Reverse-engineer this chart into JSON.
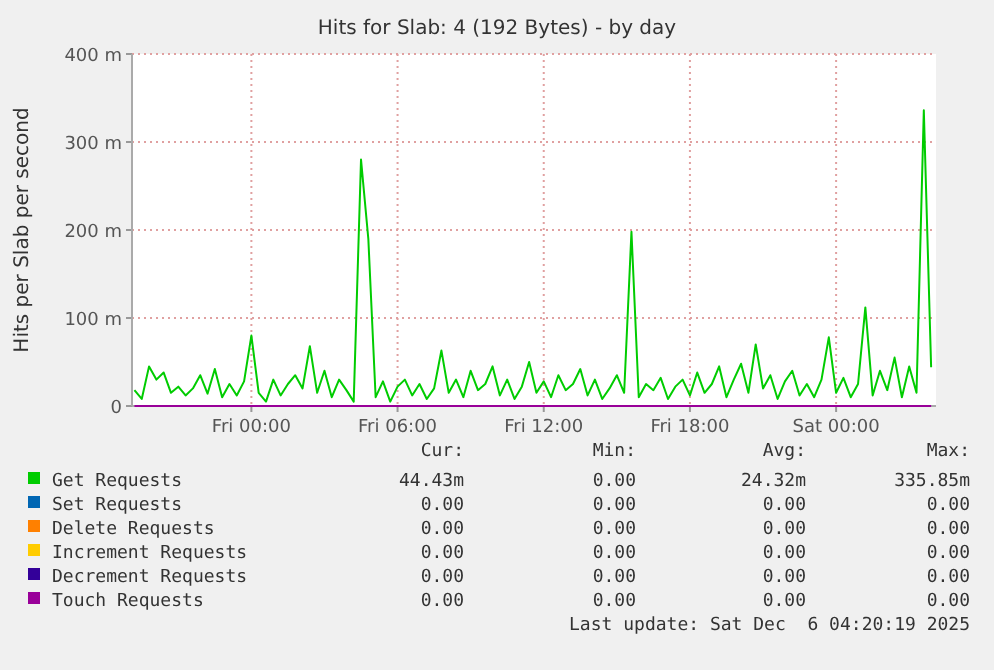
{
  "chart_data": {
    "type": "line",
    "title": "Hits for Slab: 4 (192 Bytes) - by day",
    "ylabel": "Hits per Slab per second",
    "xlim": [
      "2025-12-04T19:06",
      "2025-12-06T04:06"
    ],
    "xticks": [
      {
        "value": "2025-12-05T00:00",
        "label": "Fri 00:00"
      },
      {
        "value": "2025-12-05T06:00",
        "label": "Fri 06:00"
      },
      {
        "value": "2025-12-05T12:00",
        "label": "Fri 12:00"
      },
      {
        "value": "2025-12-05T18:00",
        "label": "Fri 18:00"
      },
      {
        "value": "2025-12-06T00:00",
        "label": "Sat 00:00"
      }
    ],
    "ylim": [
      0,
      400
    ],
    "yticks": [
      0,
      {
        "value": 100,
        "label": "100 m"
      },
      {
        "value": 200,
        "label": "200 m"
      },
      {
        "value": 300,
        "label": "300 m"
      },
      {
        "value": 400,
        "label": "400 m"
      }
    ],
    "grid": true,
    "legend": "bottom",
    "x": [
      "2025-12-04T19:12",
      "2025-12-04T19:30",
      "2025-12-04T19:48",
      "2025-12-04T20:06",
      "2025-12-04T20:24",
      "2025-12-04T20:42",
      "2025-12-04T21:00",
      "2025-12-04T21:18",
      "2025-12-04T21:36",
      "2025-12-04T21:54",
      "2025-12-04T22:12",
      "2025-12-04T22:30",
      "2025-12-04T22:48",
      "2025-12-04T23:06",
      "2025-12-04T23:24",
      "2025-12-04T23:42",
      "2025-12-05T00:00",
      "2025-12-05T00:18",
      "2025-12-05T00:36",
      "2025-12-05T00:54",
      "2025-12-05T01:12",
      "2025-12-05T01:30",
      "2025-12-05T01:48",
      "2025-12-05T02:06",
      "2025-12-05T02:24",
      "2025-12-05T02:42",
      "2025-12-05T03:00",
      "2025-12-05T03:18",
      "2025-12-05T03:36",
      "2025-12-05T03:54",
      "2025-12-05T04:12",
      "2025-12-05T04:30",
      "2025-12-05T04:48",
      "2025-12-05T05:06",
      "2025-12-05T05:24",
      "2025-12-05T05:42",
      "2025-12-05T06:00",
      "2025-12-05T06:18",
      "2025-12-05T06:36",
      "2025-12-05T06:54",
      "2025-12-05T07:12",
      "2025-12-05T07:30",
      "2025-12-05T07:48",
      "2025-12-05T08:06",
      "2025-12-05T08:24",
      "2025-12-05T08:42",
      "2025-12-05T09:00",
      "2025-12-05T09:18",
      "2025-12-05T09:36",
      "2025-12-05T09:54",
      "2025-12-05T10:12",
      "2025-12-05T10:30",
      "2025-12-05T10:48",
      "2025-12-05T11:06",
      "2025-12-05T11:24",
      "2025-12-05T11:42",
      "2025-12-05T12:00",
      "2025-12-05T12:18",
      "2025-12-05T12:36",
      "2025-12-05T12:54",
      "2025-12-05T13:12",
      "2025-12-05T13:30",
      "2025-12-05T13:48",
      "2025-12-05T14:06",
      "2025-12-05T14:24",
      "2025-12-05T14:42",
      "2025-12-05T15:00",
      "2025-12-05T15:18",
      "2025-12-05T15:36",
      "2025-12-05T15:54",
      "2025-12-05T16:12",
      "2025-12-05T16:30",
      "2025-12-05T16:48",
      "2025-12-05T17:06",
      "2025-12-05T17:24",
      "2025-12-05T17:42",
      "2025-12-05T18:00",
      "2025-12-05T18:18",
      "2025-12-05T18:36",
      "2025-12-05T18:54",
      "2025-12-05T19:12",
      "2025-12-05T19:30",
      "2025-12-05T19:48",
      "2025-12-05T20:06",
      "2025-12-05T20:24",
      "2025-12-05T20:42",
      "2025-12-05T21:00",
      "2025-12-05T21:18",
      "2025-12-05T21:36",
      "2025-12-05T21:54",
      "2025-12-05T22:12",
      "2025-12-05T22:30",
      "2025-12-05T22:48",
      "2025-12-05T23:06",
      "2025-12-05T23:24",
      "2025-12-05T23:42",
      "2025-12-06T00:00",
      "2025-12-06T00:18",
      "2025-12-06T00:36",
      "2025-12-06T00:54",
      "2025-12-06T01:12",
      "2025-12-06T01:30",
      "2025-12-06T01:48",
      "2025-12-06T02:06",
      "2025-12-06T02:24",
      "2025-12-06T02:42",
      "2025-12-06T03:00",
      "2025-12-06T03:18",
      "2025-12-06T03:36",
      "2025-12-06T03:54"
    ],
    "series": [
      {
        "name": "Get Requests",
        "color": "#00cc00",
        "values": [
          18,
          8,
          45,
          30,
          38,
          15,
          22,
          12,
          20,
          35,
          14,
          42,
          10,
          25,
          12,
          28,
          80,
          15,
          5,
          30,
          12,
          25,
          35,
          20,
          68,
          15,
          40,
          10,
          30,
          18,
          5,
          280,
          190,
          10,
          28,
          5,
          22,
          30,
          12,
          25,
          8,
          20,
          63,
          15,
          30,
          10,
          40,
          18,
          25,
          45,
          12,
          30,
          8,
          22,
          50,
          15,
          28,
          10,
          35,
          18,
          25,
          42,
          12,
          30,
          8,
          20,
          35,
          15,
          198,
          10,
          25,
          18,
          32,
          8,
          22,
          30,
          12,
          38,
          15,
          25,
          45,
          10,
          30,
          48,
          15,
          70,
          20,
          35,
          8,
          28,
          40,
          12,
          25,
          10,
          30,
          78,
          15,
          32,
          10,
          25,
          112,
          12,
          40,
          18,
          55,
          10,
          45,
          15,
          336,
          44
        ]
      },
      {
        "name": "Set Requests",
        "color": "#0066b3",
        "values": [
          null,
          null,
          null,
          null,
          null,
          null,
          null,
          null,
          null,
          null,
          null,
          null,
          null,
          null,
          null,
          null,
          null,
          null,
          null,
          null,
          null,
          null,
          null,
          null,
          null,
          null,
          null,
          null,
          null,
          null,
          null,
          null,
          null,
          null,
          null,
          null,
          null,
          null,
          null,
          null,
          null,
          null,
          null,
          null,
          null,
          null,
          null,
          null,
          null,
          null,
          null,
          null,
          null,
          null,
          null,
          null,
          null,
          null,
          null,
          null,
          null,
          null,
          null,
          null,
          null,
          null,
          null,
          null,
          null,
          null,
          null,
          null,
          null,
          null,
          null,
          null,
          null,
          null,
          null,
          null,
          null,
          null,
          null,
          null,
          null,
          null,
          null,
          null,
          null,
          null,
          null,
          null,
          null,
          null,
          null,
          null,
          null,
          null,
          null,
          null,
          null,
          null,
          null,
          null,
          null,
          null,
          null,
          null,
          null,
          null
        ]
      },
      {
        "name": "Delete Requests",
        "color": "#ff8000",
        "values": [
          null,
          null,
          null,
          null,
          null,
          null,
          null,
          null,
          null,
          null,
          null,
          null,
          null,
          null,
          null,
          null,
          null,
          null,
          null,
          null,
          null,
          null,
          null,
          null,
          null,
          null,
          null,
          null,
          null,
          null,
          null,
          null,
          null,
          null,
          null,
          null,
          null,
          null,
          null,
          null,
          null,
          null,
          null,
          null,
          null,
          null,
          null,
          null,
          null,
          null,
          null,
          null,
          null,
          null,
          null,
          null,
          null,
          null,
          null,
          null,
          null,
          null,
          null,
          null,
          null,
          null,
          null,
          null,
          null,
          null,
          null,
          null,
          null,
          null,
          null,
          null,
          null,
          null,
          null,
          null,
          null,
          null,
          null,
          null,
          null,
          null,
          null,
          null,
          null,
          null,
          null,
          null,
          null,
          null,
          null,
          null,
          null,
          null,
          null,
          null,
          null,
          null,
          null,
          null,
          null,
          null,
          null,
          null,
          null,
          null
        ]
      },
      {
        "name": "Increment Requests",
        "color": "#ffcc00",
        "values": [
          null,
          null,
          null,
          null,
          null,
          null,
          null,
          null,
          null,
          null,
          null,
          null,
          null,
          null,
          null,
          null,
          null,
          null,
          null,
          null,
          null,
          null,
          null,
          null,
          null,
          null,
          null,
          null,
          null,
          null,
          null,
          null,
          null,
          null,
          null,
          null,
          null,
          null,
          null,
          null,
          null,
          null,
          null,
          null,
          null,
          null,
          null,
          null,
          null,
          null,
          null,
          null,
          null,
          null,
          null,
          null,
          null,
          null,
          null,
          null,
          null,
          null,
          null,
          null,
          null,
          null,
          null,
          null,
          null,
          null,
          null,
          null,
          null,
          null,
          null,
          null,
          null,
          null,
          null,
          null,
          null,
          null,
          null,
          null,
          null,
          null,
          null,
          null,
          null,
          null,
          null,
          null,
          null,
          null,
          null,
          null,
          null,
          null,
          null,
          null,
          null,
          null,
          null,
          null,
          null,
          null,
          null,
          null,
          null,
          null
        ]
      },
      {
        "name": "Decrement Requests",
        "color": "#330099",
        "values": [
          null,
          null,
          null,
          null,
          null,
          null,
          null,
          null,
          null,
          null,
          null,
          null,
          null,
          null,
          null,
          null,
          null,
          null,
          null,
          null,
          null,
          null,
          null,
          null,
          null,
          null,
          null,
          null,
          null,
          null,
          null,
          null,
          null,
          null,
          null,
          null,
          null,
          null,
          null,
          null,
          null,
          null,
          null,
          null,
          null,
          null,
          null,
          null,
          null,
          null,
          null,
          null,
          null,
          null,
          null,
          null,
          null,
          null,
          null,
          null,
          null,
          null,
          null,
          null,
          null,
          null,
          null,
          null,
          null,
          null,
          null,
          null,
          null,
          null,
          null,
          null,
          null,
          null,
          null,
          null,
          null,
          null,
          null,
          null,
          null,
          null,
          null,
          null,
          null,
          null,
          null,
          null,
          null,
          null,
          null,
          null,
          null,
          null,
          null,
          null,
          null,
          null,
          null,
          null,
          null,
          null,
          null,
          null,
          null,
          null
        ]
      },
      {
        "name": "Touch Requests",
        "color": "#990099",
        "values": [
          0,
          0,
          0,
          0,
          0,
          0,
          0,
          0,
          0,
          0,
          0,
          0,
          0,
          0,
          0,
          0,
          0,
          0,
          0,
          0,
          0,
          0,
          0,
          0,
          0,
          0,
          0,
          0,
          0,
          0,
          0,
          0,
          0,
          0,
          0,
          0,
          0,
          0,
          0,
          0,
          0,
          0,
          0,
          0,
          0,
          0,
          0,
          0,
          0,
          0,
          0,
          0,
          0,
          0,
          0,
          0,
          0,
          0,
          0,
          0,
          0,
          0,
          0,
          0,
          0,
          0,
          0,
          0,
          0,
          0,
          0,
          0,
          0,
          0,
          0,
          0,
          0,
          0,
          0,
          0,
          0,
          0,
          0,
          0,
          0,
          0,
          0,
          0,
          0,
          0,
          0,
          0,
          0,
          0,
          0,
          0,
          0,
          0,
          0,
          0,
          0,
          0,
          0,
          0,
          0,
          0,
          0,
          0,
          0,
          0
        ]
      }
    ],
    "annotations": [
      "Cur:",
      "Min:",
      "Avg:",
      "Max:",
      "44.43m",
      "0.00",
      "24.32m",
      "335.85m",
      "0.00",
      "0.00",
      "0.00",
      "0.00",
      "0.00",
      "0.00",
      "0.00",
      "0.00",
      "0.00",
      "0.00",
      "0.00",
      "0.00",
      "0.00",
      "0.00",
      "0.00",
      "0.00",
      "0.00",
      "0.00",
      "0.00",
      "0.00",
      "Last update: Sat Dec  6 04:20:19 2025"
    ]
  }
}
